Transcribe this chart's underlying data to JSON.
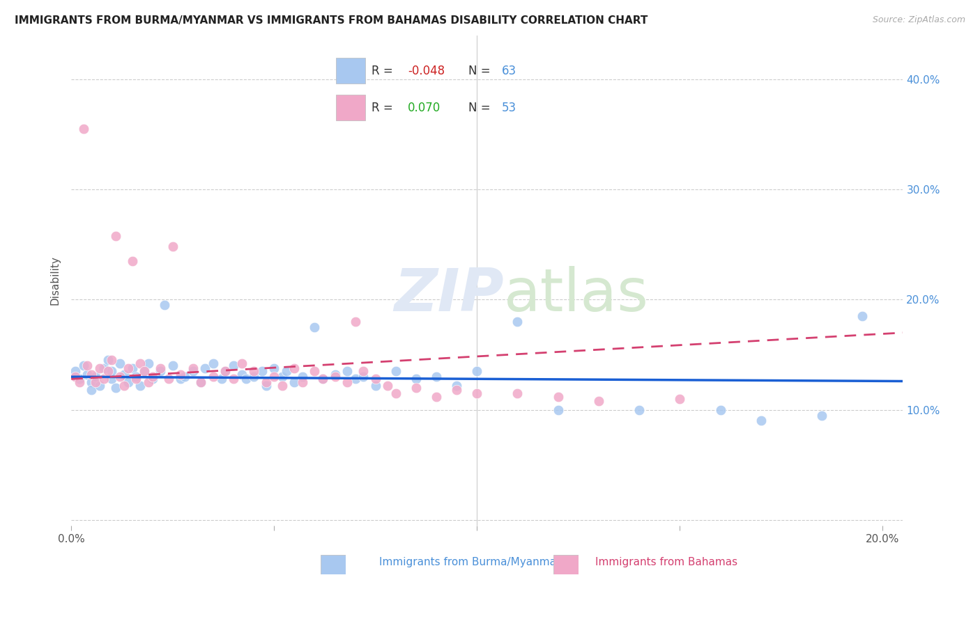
{
  "title": "IMMIGRANTS FROM BURMA/MYANMAR VS IMMIGRANTS FROM BAHAMAS DISABILITY CORRELATION CHART",
  "source": "Source: ZipAtlas.com",
  "ylabel": "Disability",
  "blue_R": -0.048,
  "blue_N": 63,
  "pink_R": 0.07,
  "pink_N": 53,
  "blue_color": "#a8c8f0",
  "pink_color": "#f0a8c8",
  "blue_line_color": "#1a5fd4",
  "pink_line_color": "#d44070",
  "blue_R_color": "#cc2222",
  "pink_R_color": "#22aa22",
  "N_color": "#4a90d9",
  "right_axis_color": "#4a90d9",
  "watermark": "ZIPatlas",
  "xlim": [
    0.0,
    0.205
  ],
  "ylim": [
    -0.005,
    0.44
  ],
  "x_ticks": [
    0.0,
    0.05,
    0.1,
    0.15,
    0.2
  ],
  "y_ticks": [
    0.0,
    0.1,
    0.2,
    0.3,
    0.4
  ],
  "blue_scatter_x": [
    0.001,
    0.002,
    0.003,
    0.004,
    0.005,
    0.005,
    0.006,
    0.007,
    0.008,
    0.009,
    0.01,
    0.01,
    0.011,
    0.012,
    0.013,
    0.014,
    0.015,
    0.016,
    0.017,
    0.018,
    0.019,
    0.02,
    0.022,
    0.023,
    0.025,
    0.027,
    0.028,
    0.03,
    0.032,
    0.033,
    0.035,
    0.037,
    0.038,
    0.04,
    0.042,
    0.043,
    0.045,
    0.047,
    0.048,
    0.05,
    0.052,
    0.053,
    0.055,
    0.057,
    0.06,
    0.062,
    0.065,
    0.068,
    0.07,
    0.072,
    0.075,
    0.08,
    0.085,
    0.09,
    0.095,
    0.1,
    0.11,
    0.12,
    0.14,
    0.16,
    0.17,
    0.185,
    0.195
  ],
  "blue_scatter_y": [
    0.135,
    0.128,
    0.14,
    0.132,
    0.125,
    0.118,
    0.13,
    0.122,
    0.138,
    0.145,
    0.128,
    0.135,
    0.12,
    0.142,
    0.132,
    0.125,
    0.138,
    0.13,
    0.122,
    0.135,
    0.142,
    0.128,
    0.135,
    0.195,
    0.14,
    0.128,
    0.13,
    0.135,
    0.125,
    0.138,
    0.142,
    0.128,
    0.135,
    0.14,
    0.132,
    0.128,
    0.13,
    0.135,
    0.122,
    0.138,
    0.13,
    0.135,
    0.125,
    0.13,
    0.175,
    0.128,
    0.132,
    0.135,
    0.128,
    0.13,
    0.122,
    0.135,
    0.128,
    0.13,
    0.122,
    0.135,
    0.18,
    0.1,
    0.1,
    0.1,
    0.09,
    0.095,
    0.185
  ],
  "pink_scatter_x": [
    0.001,
    0.002,
    0.003,
    0.004,
    0.005,
    0.006,
    0.007,
    0.008,
    0.009,
    0.01,
    0.011,
    0.012,
    0.013,
    0.014,
    0.015,
    0.016,
    0.017,
    0.018,
    0.019,
    0.02,
    0.022,
    0.024,
    0.025,
    0.027,
    0.03,
    0.032,
    0.035,
    0.038,
    0.04,
    0.042,
    0.045,
    0.048,
    0.05,
    0.052,
    0.055,
    0.057,
    0.06,
    0.062,
    0.065,
    0.068,
    0.07,
    0.072,
    0.075,
    0.078,
    0.08,
    0.085,
    0.09,
    0.095,
    0.1,
    0.11,
    0.12,
    0.13,
    0.15
  ],
  "pink_scatter_y": [
    0.13,
    0.125,
    0.355,
    0.14,
    0.132,
    0.125,
    0.138,
    0.128,
    0.135,
    0.145,
    0.258,
    0.13,
    0.122,
    0.138,
    0.235,
    0.128,
    0.142,
    0.135,
    0.125,
    0.13,
    0.138,
    0.128,
    0.248,
    0.132,
    0.138,
    0.125,
    0.13,
    0.135,
    0.128,
    0.142,
    0.135,
    0.125,
    0.13,
    0.122,
    0.138,
    0.125,
    0.135,
    0.128,
    0.13,
    0.125,
    0.18,
    0.135,
    0.128,
    0.122,
    0.115,
    0.12,
    0.112,
    0.118,
    0.115,
    0.115,
    0.112,
    0.108,
    0.11
  ]
}
